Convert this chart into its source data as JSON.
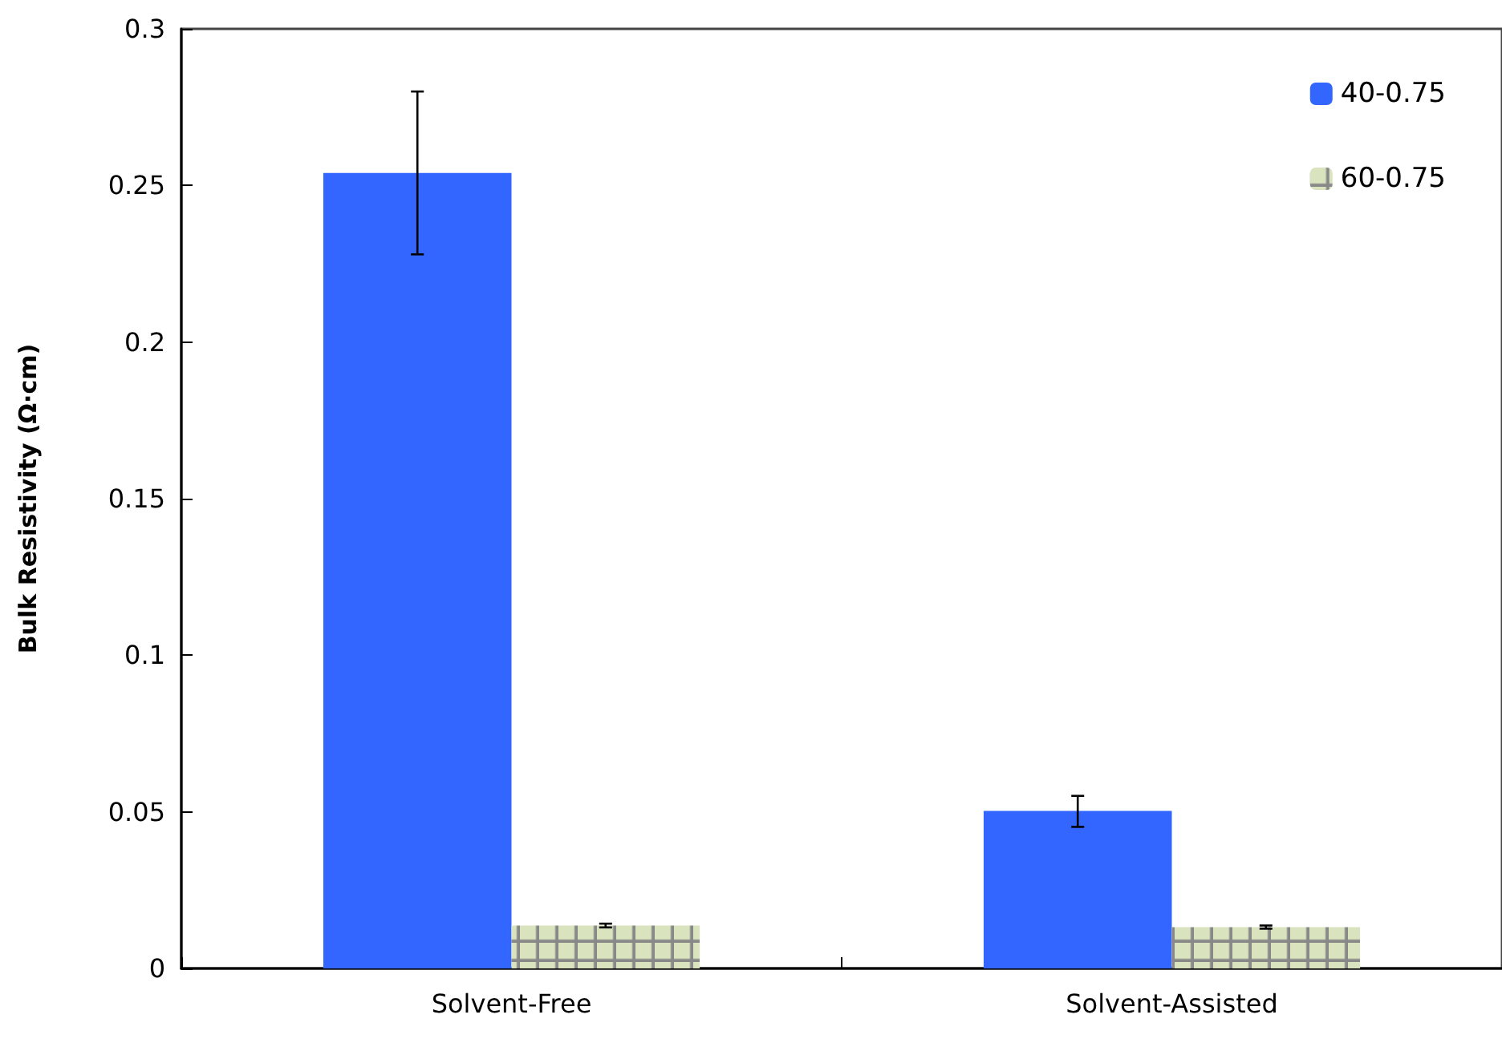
{
  "chart_data": {
    "type": "bar",
    "ylabel": "Bulk Resistivity (Ω·cm)",
    "categories": [
      "Solvent-Free",
      "Solvent-Assisted"
    ],
    "series": [
      {
        "name": "40-0.75",
        "color": "#3366ff",
        "values": [
          0.254,
          0.0503
        ],
        "errors": [
          [
            0.228,
            0.28
          ],
          [
            0.0452,
            0.0551
          ]
        ]
      },
      {
        "name": "60-0.75",
        "color": "#d9e4bf",
        "values": [
          0.0137,
          0.0132
        ],
        "errors": [
          [
            0.0131,
            0.0143
          ],
          [
            0.0127,
            0.0137
          ]
        ]
      }
    ],
    "ylim": [
      0,
      0.3
    ],
    "yticks": [
      0,
      0.05,
      0.1,
      0.15,
      0.2,
      0.25,
      0.3
    ],
    "grid": false,
    "legend": "top right"
  }
}
